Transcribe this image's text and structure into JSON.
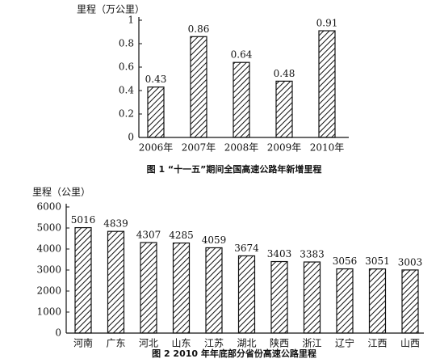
{
  "chart_data": [
    {
      "type": "bar",
      "ylabel": "里程（万公里）",
      "caption": "图 1 “十一五”期间全国高速公路年新增里程",
      "categories": [
        "2006年",
        "2007年",
        "2008年",
        "2009年",
        "2010年"
      ],
      "values": [
        0.43,
        0.86,
        0.64,
        0.48,
        0.91
      ],
      "color": "#111",
      "ylim": [
        0,
        1
      ],
      "yticks": [
        0,
        0.2,
        0.4,
        0.6,
        0.8,
        1
      ]
    },
    {
      "type": "bar",
      "ylabel": "里程（公里）",
      "caption": "图 2 2010 年年底部分省份高速公路里程",
      "categories": [
        "河南",
        "广东",
        "河北",
        "山东",
        "江苏",
        "湖北",
        "陕西",
        "浙江",
        "辽宁",
        "江西",
        "山西"
      ],
      "values": [
        5016,
        4839,
        4307,
        4285,
        4059,
        3674,
        3403,
        3383,
        3056,
        3051,
        3003
      ],
      "color": "#111",
      "ylim": [
        0,
        6000
      ],
      "yticks": [
        0,
        1000,
        2000,
        3000,
        4000,
        5000,
        6000
      ]
    }
  ]
}
